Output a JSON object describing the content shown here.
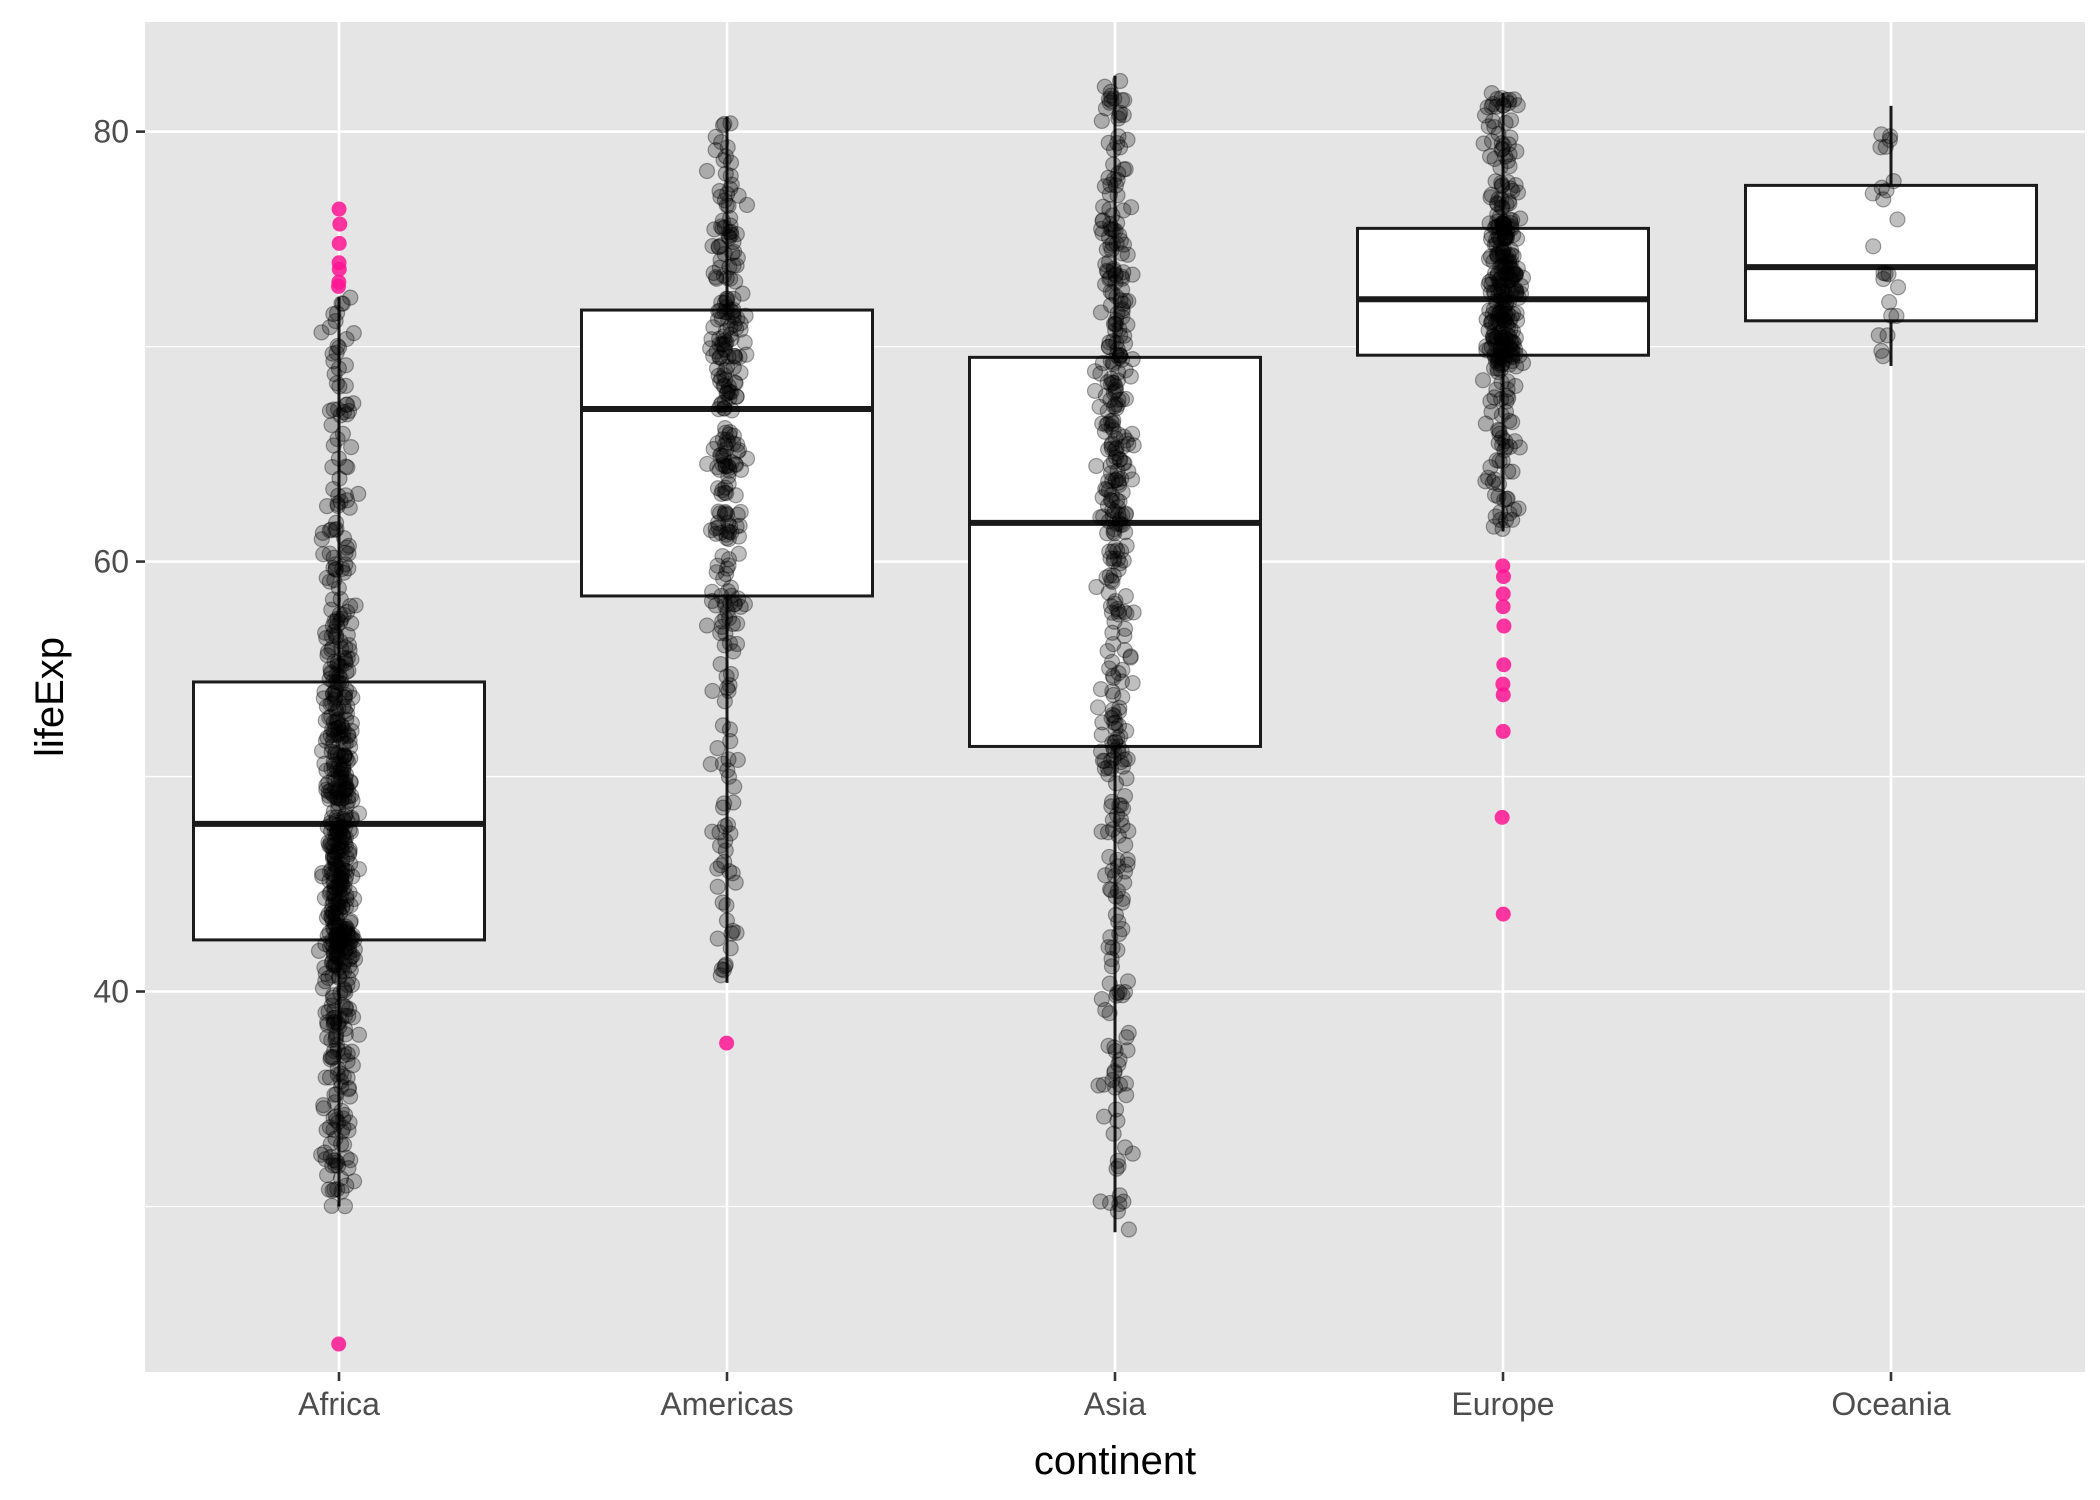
{
  "chart_data": {
    "type": "boxplot",
    "xlabel": "continent",
    "ylabel": "lifeExp",
    "ylim": [
      22.3,
      85.1
    ],
    "yticks": [
      40,
      60,
      80
    ],
    "yminor": [
      30,
      50,
      70
    ],
    "grid": true,
    "colors": {
      "panel": "#e5e5e5",
      "grid": "#ffffff",
      "box_fill": "#ffffff",
      "box_line": "#1a1a1a",
      "point": "#000000",
      "outlier": "#ff1493"
    },
    "categories": [
      "Africa",
      "Americas",
      "Asia",
      "Europe",
      "Oceania"
    ],
    "boxes": [
      {
        "category": "Africa",
        "q1": 42.4,
        "median": 47.8,
        "q3": 54.4,
        "whisker_low": 30.0,
        "whisker_high": 72.3,
        "outliers": [
          76.4,
          75.7,
          74.8,
          73.9,
          73.6,
          73.0,
          72.8,
          23.6
        ],
        "n": 624
      },
      {
        "category": "Americas",
        "q1": 58.4,
        "median": 67.1,
        "q3": 71.7,
        "whisker_low": 40.4,
        "whisker_high": 80.7,
        "outliers": [
          37.6
        ],
        "n": 300
      },
      {
        "category": "Asia",
        "q1": 51.4,
        "median": 61.8,
        "q3": 69.5,
        "whisker_low": 28.8,
        "whisker_high": 82.6,
        "outliers": [],
        "n": 396
      },
      {
        "category": "Europe",
        "q1": 69.6,
        "median": 72.2,
        "q3": 75.5,
        "whisker_low": 61.4,
        "whisker_high": 81.8,
        "outliers": [
          59.8,
          59.3,
          58.5,
          57.9,
          57.0,
          55.2,
          54.3,
          53.8,
          52.1,
          48.1,
          43.6
        ],
        "n": 360
      },
      {
        "category": "Oceania",
        "q1": 71.2,
        "median": 73.7,
        "q3": 77.5,
        "whisker_low": 69.1,
        "whisker_high": 81.2,
        "outliers": [],
        "n": 24
      }
    ]
  }
}
